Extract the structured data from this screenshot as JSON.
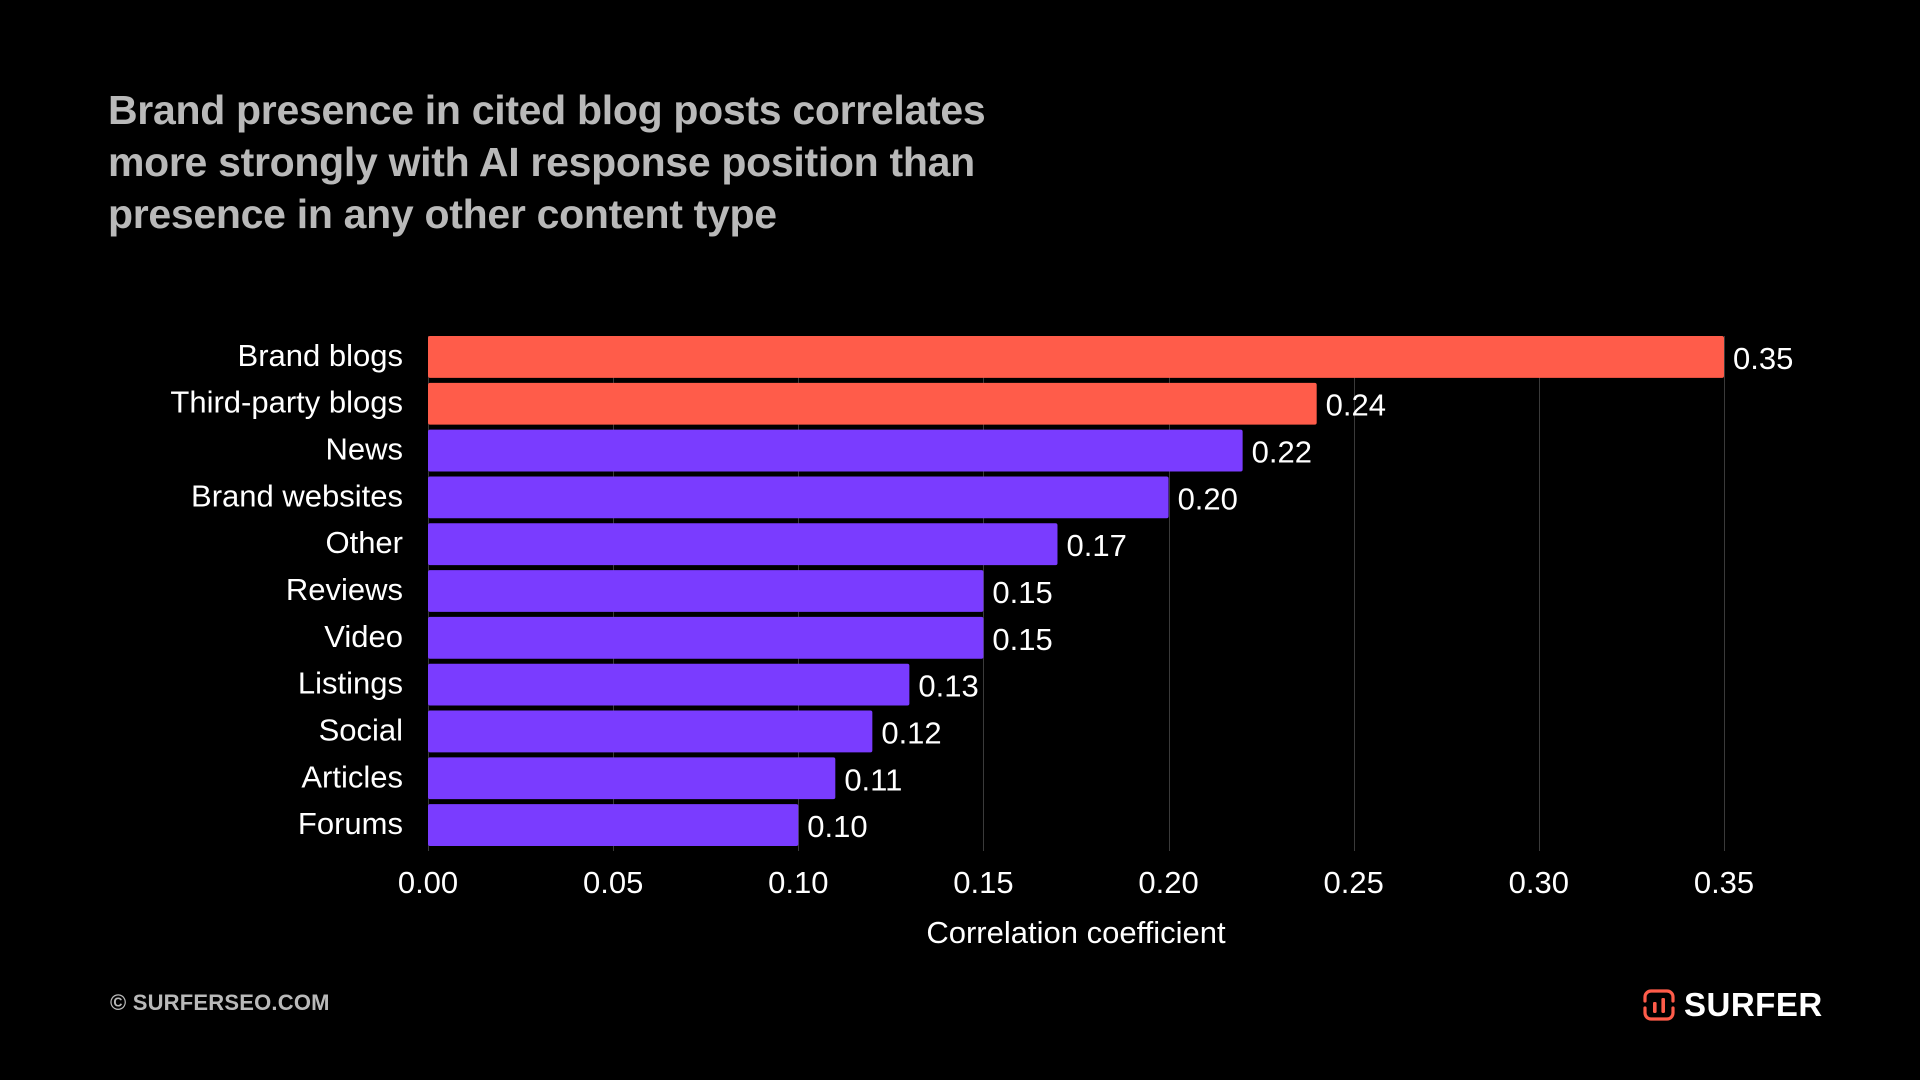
{
  "title_lines": [
    "Brand presence in cited blog posts correlates",
    "more strongly with AI response position than",
    "presence in any other content type"
  ],
  "footer": {
    "copyright": "© SURFERSEO.COM",
    "brand": "SURFER",
    "brand_icon": "surfer-logo-icon"
  },
  "colors": {
    "background": "#000000",
    "highlight": "#ff5c4a",
    "default": "#7a3cff",
    "grid": "#3a3a3a",
    "title": "#b9b9b9",
    "text": "#ffffff"
  },
  "chart_data": {
    "type": "bar",
    "orientation": "horizontal",
    "title": "Brand presence in cited blog posts correlates more strongly with AI response position than presence in any other content type",
    "categories": [
      "Brand blogs",
      "Third-party blogs",
      "News",
      "Brand websites",
      "Other",
      "Reviews",
      "Video",
      "Listings",
      "Social",
      "Articles",
      "Forums"
    ],
    "values": [
      0.35,
      0.24,
      0.22,
      0.2,
      0.17,
      0.15,
      0.15,
      0.13,
      0.12,
      0.11,
      0.1
    ],
    "value_labels": [
      "0.35",
      "0.24",
      "0.22",
      "0.20",
      "0.17",
      "0.15",
      "0.15",
      "0.13",
      "0.12",
      "0.11",
      "0.10"
    ],
    "highlighted": [
      "Brand blogs",
      "Third-party blogs"
    ],
    "xlabel": "Correlation coefficient",
    "ylabel": "",
    "xlim": [
      0,
      0.35
    ],
    "xticks": [
      0.0,
      0.05,
      0.1,
      0.15,
      0.2,
      0.25,
      0.3,
      0.35
    ],
    "xtick_labels": [
      "0.00",
      "0.05",
      "0.10",
      "0.15",
      "0.20",
      "0.25",
      "0.30",
      "0.35"
    ],
    "grid": "vertical",
    "legend": "none"
  }
}
